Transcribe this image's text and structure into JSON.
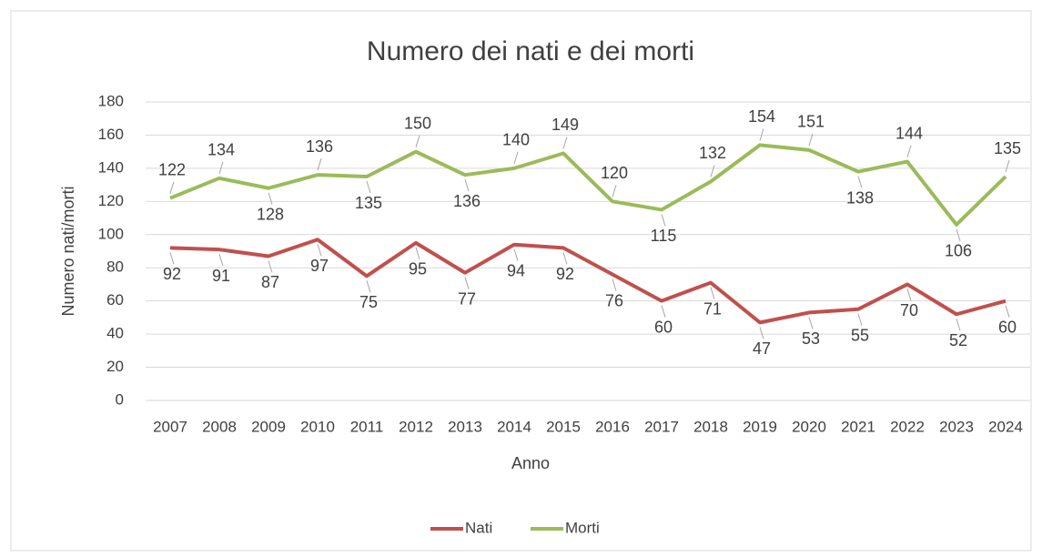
{
  "chart_data": {
    "type": "line",
    "title": "Numero dei nati e dei morti",
    "x_label": "Anno",
    "y_label": "Numero nati/morti",
    "categories": [
      "2007",
      "2008",
      "2009",
      "2010",
      "2011",
      "2012",
      "2013",
      "2014",
      "2015",
      "2016",
      "2017",
      "2018",
      "2019",
      "2020",
      "2021",
      "2022",
      "2023",
      "2024"
    ],
    "series": [
      {
        "name": "Nati",
        "color": "#c0504d",
        "values": [
          92,
          91,
          87,
          97,
          75,
          95,
          77,
          94,
          92,
          76,
          60,
          71,
          47,
          53,
          55,
          70,
          52,
          60
        ]
      },
      {
        "name": "Morti",
        "color": "#9bbb59",
        "values": [
          122,
          134,
          128,
          136,
          135,
          150,
          136,
          140,
          149,
          120,
          115,
          132,
          154,
          151,
          138,
          144,
          106,
          135
        ]
      }
    ],
    "ylim": [
      0,
      180
    ],
    "yticks": [
      0,
      20,
      40,
      60,
      80,
      100,
      120,
      140,
      160,
      180
    ],
    "grid": true,
    "legend": "bottom"
  }
}
